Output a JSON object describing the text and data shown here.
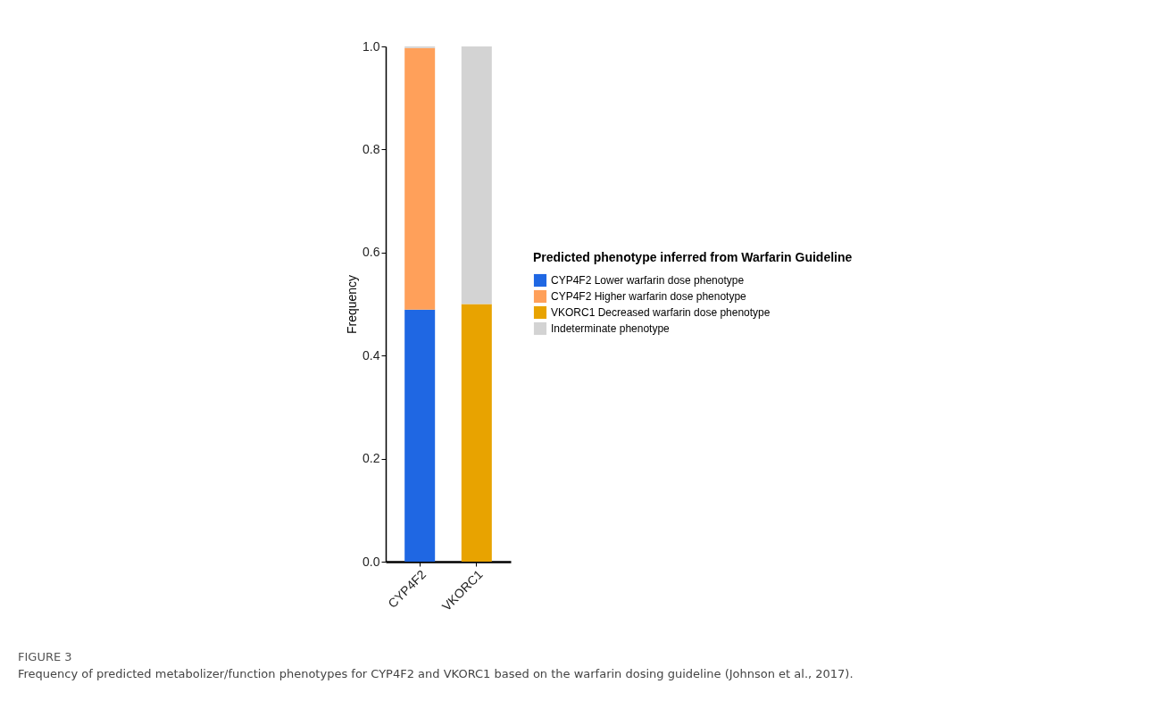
{
  "chart_data": {
    "type": "bar",
    "stacked": true,
    "ylabel": "Frequency",
    "legend_title": "Predicted phenotype inferred from Warfarin Guideline",
    "legend": "right",
    "grid": false,
    "categories": [
      "CYP4F2",
      "VKORC1"
    ],
    "ylim": [
      0,
      1
    ],
    "yticks": [
      {
        "value": 0,
        "label": "0.0"
      },
      {
        "value": 0.2,
        "label": "0.2"
      },
      {
        "value": 0.4,
        "label": "0.4"
      },
      {
        "value": 0.6,
        "label": "0.6"
      },
      {
        "value": 0.8,
        "label": "0.8"
      },
      {
        "value": 1,
        "label": "1.0"
      }
    ],
    "series": [
      {
        "name": "CYP4F2 Lower warfarin dose phenotype",
        "color": "#1f67e3",
        "values": [
          0.489,
          null
        ]
      },
      {
        "name": "CYP4F2 Higher warfarin dose phenotype",
        "color": "#ffa05a",
        "values": [
          0.508,
          null
        ]
      },
      {
        "name": "VKORC1 Decreased warfarin dose phenotype",
        "color": "#e8a300",
        "values": [
          null,
          0.5
        ]
      },
      {
        "name": "Indeterminate phenotype",
        "color": "#d3d3d3",
        "values": [
          0.003,
          0.5
        ]
      }
    ],
    "annotations": [
      "FIGURE 3",
      "Frequency of predicted metabolizer/function phenotypes for CYP4F2 and VKORC1 based on the warfarin dosing guideline (Johnson et al., 2017)."
    ]
  }
}
